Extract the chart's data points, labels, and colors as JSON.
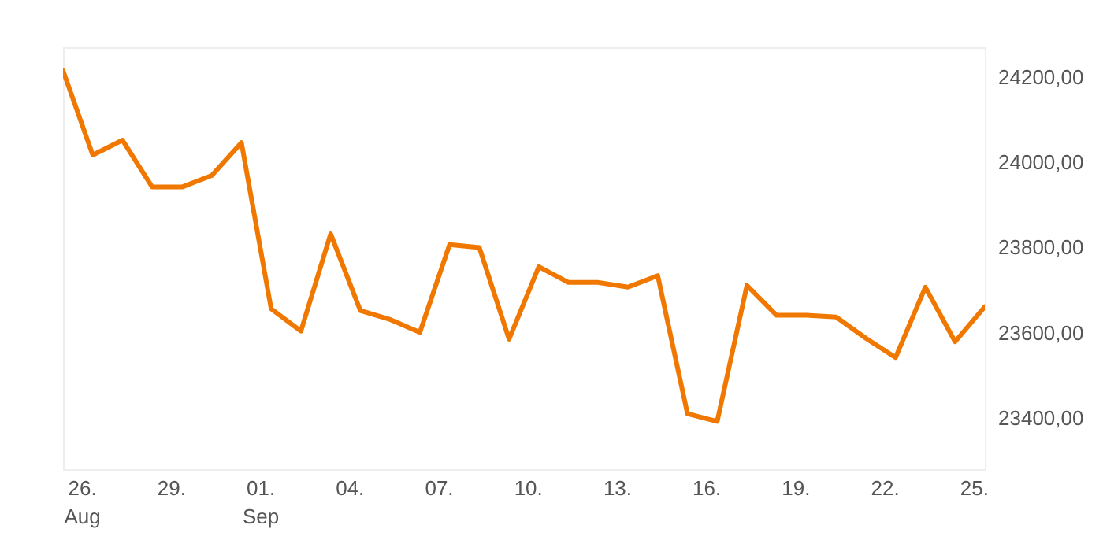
{
  "chart_data": {
    "type": "line",
    "x": [
      "--08-25T09:00",
      "--08-26T09:00",
      "--08-27T09:00",
      "--08-28T09:00",
      "--08-29T09:00",
      "--08-30T09:00",
      "--08-31T09:00",
      "--09-01T09:00",
      "--09-02T09:00",
      "--09-03T09:00",
      "--09-04T09:00",
      "--09-05T09:00",
      "--09-06T09:00",
      "--09-07T09:00",
      "--09-08T09:00",
      "--09-09T09:00",
      "--09-10T09:00",
      "--09-11T09:00",
      "--09-12T09:00",
      "--09-13T09:00",
      "--09-14T09:00",
      "--09-15T09:00",
      "--09-16T09:00",
      "--09-17T09:00",
      "--09-18T09:00",
      "--09-19T09:00",
      "--09-20T09:00",
      "--09-21T09:00",
      "--09-22T09:00",
      "--09-23T09:00",
      "--09-24T09:00",
      "--09-25T09:00"
    ],
    "series": [
      {
        "color": "#f07800",
        "values": [
          24215,
          24017,
          24052,
          23942,
          23942,
          23969,
          24046,
          23656,
          23604,
          23832,
          23652,
          23631,
          23601,
          23807,
          23800,
          23585,
          23755,
          23718,
          23718,
          23707,
          23734,
          23410,
          23392,
          23711,
          23641,
          23641,
          23637,
          23587,
          23542,
          23707,
          23579,
          23661
        ]
      }
    ],
    "xlim": [
      "--08-25T09:00",
      "--09-25T09:00"
    ],
    "xticks": [
      {
        "value": "--08-26",
        "label": "26.\nAug"
      },
      {
        "value": "--08-29",
        "label": "29."
      },
      {
        "value": "--09-01",
        "label": "01.\nSep"
      },
      {
        "value": "--09-04",
        "label": "04."
      },
      {
        "value": "--09-07",
        "label": "07."
      },
      {
        "value": "--09-10",
        "label": "10."
      },
      {
        "value": "--09-13",
        "label": "13."
      },
      {
        "value": "--09-16",
        "label": "16."
      },
      {
        "value": "--09-19",
        "label": "19."
      },
      {
        "value": "--09-22",
        "label": "22."
      },
      {
        "value": "--09-25",
        "label": "25."
      }
    ],
    "ylim": [
      23280,
      24270
    ],
    "yticks": [
      {
        "value": 23400,
        "label": "23400,00"
      },
      {
        "value": 23600,
        "label": "23600,00"
      },
      {
        "value": 23800,
        "label": "23800,00"
      },
      {
        "value": 24000,
        "label": "24000,00"
      },
      {
        "value": 24200,
        "label": "24200,00"
      }
    ],
    "grid": false,
    "marker": "none",
    "line_style": "solid"
  }
}
